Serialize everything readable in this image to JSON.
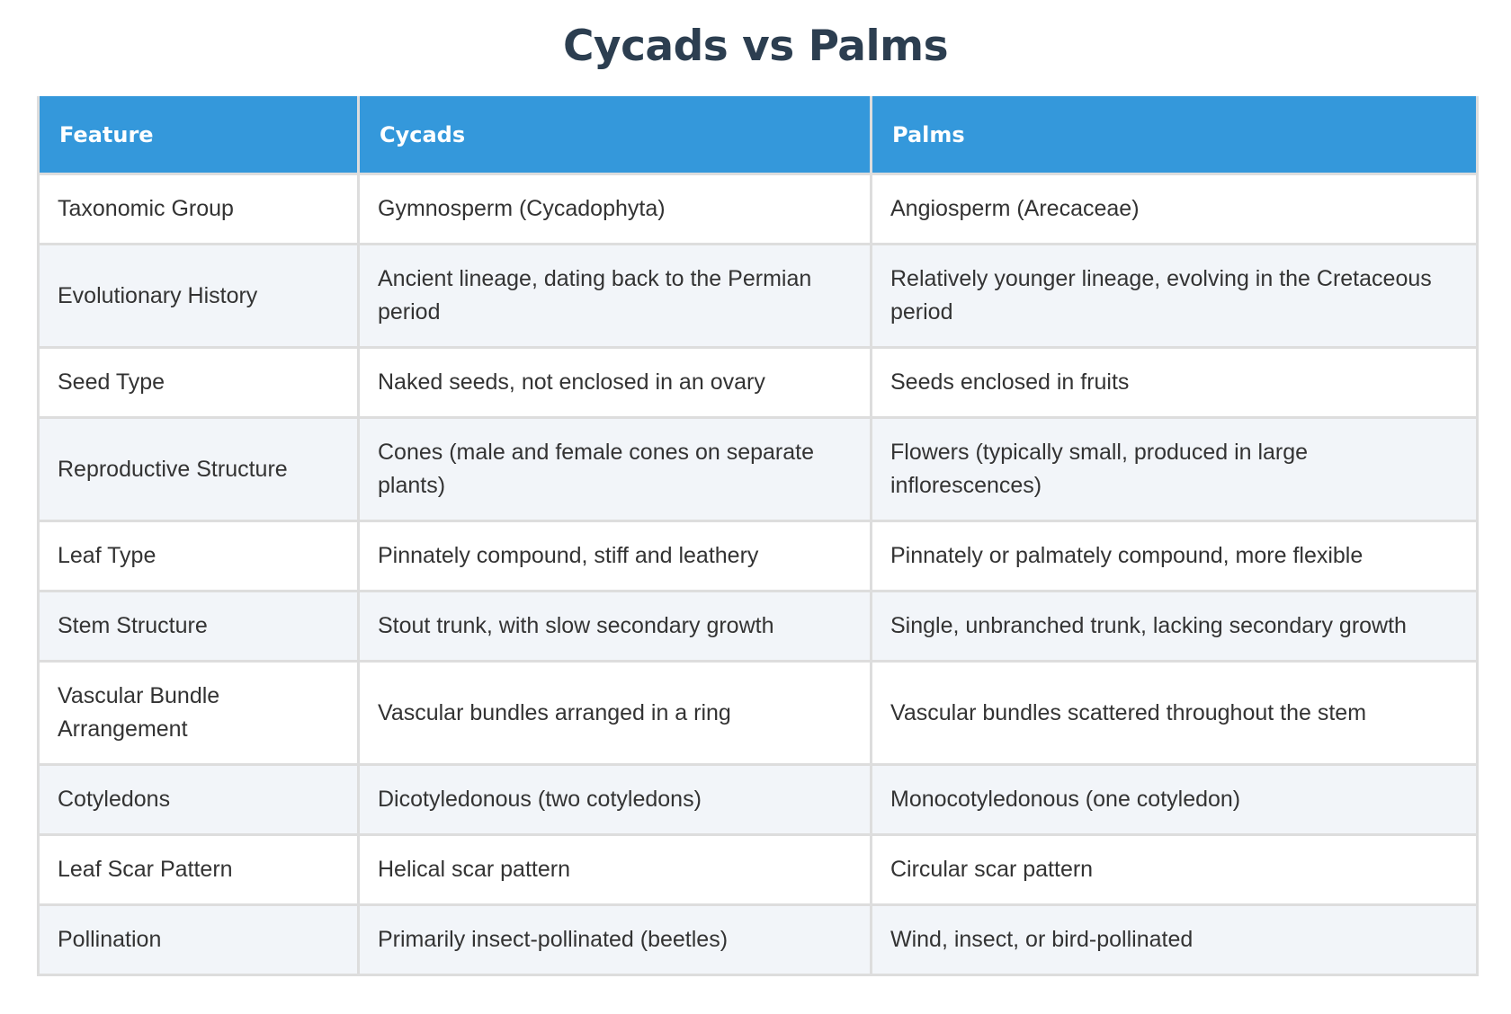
{
  "title": "Cycads vs Palms",
  "table": {
    "headers": [
      "Feature",
      "Cycads",
      "Palms"
    ],
    "rows": [
      {
        "feature": "Taxonomic Group",
        "cycads": "Gymnosperm (Cycadophyta)",
        "palms": "Angiosperm (Arecaceae)"
      },
      {
        "feature": "Evolutionary History",
        "cycads": "Ancient lineage, dating back to the Permian period",
        "palms": "Relatively younger lineage, evolving in the Cretaceous period"
      },
      {
        "feature": "Seed Type",
        "cycads": "Naked seeds, not enclosed in an ovary",
        "palms": "Seeds enclosed in fruits"
      },
      {
        "feature": "Reproductive Structure",
        "cycads": "Cones (male and female cones on separate plants)",
        "palms": "Flowers (typically small, produced in large inflorescences)"
      },
      {
        "feature": "Leaf Type",
        "cycads": "Pinnately compound, stiff and leathery",
        "palms": "Pinnately or palmately compound, more flexible"
      },
      {
        "feature": "Stem Structure",
        "cycads": "Stout trunk, with slow secondary growth",
        "palms": "Single, unbranched trunk, lacking secondary growth"
      },
      {
        "feature": "Vascular Bundle Arrangement",
        "cycads": "Vascular bundles arranged in a ring",
        "palms": "Vascular bundles scattered throughout the stem"
      },
      {
        "feature": "Cotyledons",
        "cycads": "Dicotyledonous (two cotyledons)",
        "palms": "Monocotyledonous (one cotyledon)"
      },
      {
        "feature": "Leaf Scar Pattern",
        "cycads": "Helical scar pattern",
        "palms": "Circular scar pattern"
      },
      {
        "feature": "Pollination",
        "cycads": "Primarily insect-pollinated (beetles)",
        "palms": "Wind, insect, or bird-pollinated"
      }
    ]
  },
  "colors": {
    "title": "#2c3e50",
    "header_bg": "#3498db",
    "header_text": "#ffffff",
    "row_alt_bg": "#f2f5f9",
    "border": "#dddddd",
    "cell_text": "#333333"
  }
}
